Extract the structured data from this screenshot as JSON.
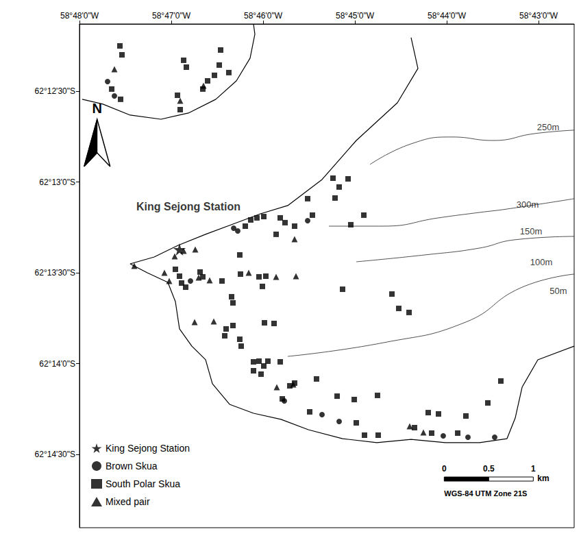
{
  "chart_data": {
    "type": "scatter",
    "grid": false,
    "xlim": [
      -58.8,
      -58.7102
    ],
    "ylim": [
      -62.24839,
      -62.20217
    ],
    "xticks": [
      {
        "value": -58.8,
        "label": "58°48'0\"W"
      },
      {
        "value": -58.783333,
        "label": "58°47'0\"W"
      },
      {
        "value": -58.766667,
        "label": "58°46'0\"W"
      },
      {
        "value": -58.75,
        "label": "58°45'0\"W"
      },
      {
        "value": -58.733333,
        "label": "58°44'0\"W"
      },
      {
        "value": -58.716667,
        "label": "58°43'0\"W"
      }
    ],
    "yticks": [
      {
        "value": -62.241667,
        "label": "62°14'30\"S"
      },
      {
        "value": -62.233333,
        "label": "62°14'0\"S"
      },
      {
        "value": -62.225,
        "label": "62°13'30\"S"
      },
      {
        "value": -62.216667,
        "label": "62°13'0\"S"
      },
      {
        "value": -62.208333,
        "label": "62°12'30\"S"
      }
    ],
    "legend": "bottom-left",
    "series": [
      {
        "name": "King Sejong Station",
        "color": "#000000",
        "marker": "star",
        "values": [
          [
            -58.78184,
            -62.22286
          ]
        ]
      },
      {
        "name": "Brown Skua",
        "color": "#000000",
        "marker": "circle",
        "values": [
          [
            -58.7949,
            -62.20745
          ],
          [
            -58.79366,
            -62.20877
          ],
          [
            -58.77201,
            -62.22091
          ],
          [
            -58.77127,
            -62.22116
          ],
          [
            -58.75858,
            -62.22022
          ],
          [
            -58.77985,
            -62.22575
          ],
          [
            -58.76281,
            -62.23676
          ],
          [
            -58.75597,
            -62.23801
          ],
          [
            -58.75286,
            -62.23864
          ],
          [
            -58.73396,
            -62.23996
          ],
          [
            -58.72948,
            -62.24009
          ],
          [
            -58.72463,
            -62.24009
          ]
        ]
      },
      {
        "name": "South Polar Skua",
        "color": "#000000",
        "marker": "square",
        "values": [
          [
            -58.79266,
            -62.20418
          ],
          [
            -58.79229,
            -62.205
          ],
          [
            -58.79415,
            -62.20814
          ],
          [
            -58.79254,
            -62.20908
          ],
          [
            -58.78109,
            -62.2055
          ],
          [
            -58.7806,
            -62.20613
          ],
          [
            -58.78221,
            -62.20871
          ],
          [
            -58.78172,
            -62.21003
          ],
          [
            -58.77761,
            -62.20814
          ],
          [
            -58.77674,
            -62.20739
          ],
          [
            -58.77438,
            -62.20456
          ],
          [
            -58.77463,
            -62.20594
          ],
          [
            -58.77289,
            -62.20663
          ],
          [
            -58.7755,
            -62.20688
          ],
          [
            -58.75398,
            -62.21632
          ],
          [
            -58.75124,
            -62.21638
          ],
          [
            -58.75361,
            -62.21814
          ],
          [
            -58.75286,
            -62.21713
          ],
          [
            -58.75858,
            -62.2182
          ],
          [
            -58.74838,
            -62.21971
          ],
          [
            -58.75075,
            -62.22059
          ],
          [
            -58.76356,
            -62.21996
          ],
          [
            -58.76269,
            -62.2204
          ],
          [
            -58.76654,
            -62.21984
          ],
          [
            -58.76779,
            -62.21996
          ],
          [
            -58.76891,
            -62.22015
          ],
          [
            -58.7699,
            -62.22072
          ],
          [
            -58.7643,
            -62.22147
          ],
          [
            -58.76095,
            -62.22072
          ],
          [
            -58.75771,
            -62.21971
          ],
          [
            -58.7709,
            -62.22336
          ],
          [
            -58.77239,
            -62.2272
          ],
          [
            -58.77214,
            -62.22776
          ],
          [
            -58.77338,
            -62.23015
          ],
          [
            -58.77363,
            -62.23078
          ],
          [
            -58.77214,
            -62.22984
          ],
          [
            -58.7709,
            -62.2311
          ],
          [
            -58.77065,
            -62.23173
          ],
          [
            -58.76642,
            -62.22959
          ],
          [
            -58.76468,
            -62.22965
          ],
          [
            -58.76741,
            -62.22537
          ],
          [
            -58.76679,
            -62.22625
          ],
          [
            -58.76617,
            -62.22531
          ],
          [
            -58.75224,
            -62.22651
          ],
          [
            -58.74328,
            -62.22695
          ],
          [
            -58.74204,
            -62.22827
          ],
          [
            -58.74017,
            -62.22864
          ],
          [
            -58.78259,
            -62.22468
          ],
          [
            -58.78184,
            -62.22531
          ],
          [
            -58.78147,
            -62.22594
          ],
          [
            -58.78072,
            -62.22632
          ],
          [
            -58.77811,
            -62.22493
          ],
          [
            -58.77761,
            -62.22537
          ],
          [
            -58.77413,
            -62.22575
          ],
          [
            -58.77077,
            -62.22512
          ],
          [
            -58.76841,
            -62.23317
          ],
          [
            -58.76741,
            -62.23311
          ],
          [
            -58.76654,
            -62.23355
          ],
          [
            -58.76841,
            -62.23399
          ],
          [
            -58.76704,
            -62.2343
          ],
          [
            -58.7658,
            -62.23311
          ],
          [
            -58.76356,
            -62.23317
          ],
          [
            -58.75697,
            -62.23474
          ],
          [
            -58.76095,
            -62.23512
          ],
          [
            -58.76318,
            -62.23657
          ],
          [
            -58.76182,
            -62.23537
          ],
          [
            -58.75323,
            -62.23632
          ],
          [
            -58.75012,
            -62.23663
          ],
          [
            -58.7459,
            -62.23625
          ],
          [
            -58.75821,
            -62.23776
          ],
          [
            -58.74975,
            -62.23877
          ],
          [
            -58.74826,
            -62.2399
          ],
          [
            -58.74577,
            -62.2399
          ],
          [
            -58.73918,
            -62.23921
          ],
          [
            -58.73669,
            -62.23783
          ],
          [
            -58.73483,
            -62.23795
          ],
          [
            -58.72985,
            -62.23814
          ],
          [
            -58.72587,
            -62.23694
          ],
          [
            -58.72351,
            -62.23493
          ],
          [
            -58.73607,
            -62.23971
          ],
          [
            -58.73134,
            -62.23971
          ]
        ]
      },
      {
        "name": "Mixed pair",
        "color": "#000000",
        "marker": "triangle",
        "values": [
          [
            -58.79366,
            -62.20632
          ],
          [
            -58.78172,
            -62.20921
          ],
          [
            -58.77749,
            -62.20783
          ],
          [
            -58.79005,
            -62.22437
          ],
          [
            -58.78458,
            -62.225
          ],
          [
            -58.78271,
            -62.22349
          ],
          [
            -58.78109,
            -62.22298
          ],
          [
            -58.77898,
            -62.22286
          ],
          [
            -58.78371,
            -62.22575
          ],
          [
            -58.77836,
            -62.22544
          ],
          [
            -58.77637,
            -62.22569
          ],
          [
            -58.7791,
            -62.22952
          ],
          [
            -58.77562,
            -62.22946
          ],
          [
            -58.76095,
            -62.22191
          ],
          [
            -58.76928,
            -62.225
          ],
          [
            -58.7643,
            -62.22537
          ],
          [
            -58.7607,
            -62.22531
          ],
          [
            -58.76418,
            -62.2355
          ],
          [
            -58.76119,
            -62.23525
          ],
          [
            -58.74005,
            -62.23908
          ],
          [
            -58.73756,
            -62.23965
          ]
        ]
      }
    ],
    "coastline": [
      [
        [
          -58.7398,
          -62.20342
        ],
        [
          -58.73856,
          -62.20625
        ],
        [
          -58.74229,
          -62.2094
        ],
        [
          -58.74975,
          -62.21286
        ],
        [
          -58.75597,
          -62.21644
        ],
        [
          -58.76219,
          -62.21883
        ],
        [
          -58.76716,
          -62.21959
        ],
        [
          -58.77214,
          -62.22053
        ],
        [
          -58.77711,
          -62.22147
        ],
        [
          -58.78209,
          -62.22248
        ],
        [
          -58.78644,
          -62.22355
        ],
        [
          -58.7908,
          -62.22418
        ],
        [
          -58.78769,
          -62.225
        ],
        [
          -58.78396,
          -62.22588
        ],
        [
          -58.78259,
          -62.22764
        ],
        [
          -58.78184,
          -62.23015
        ],
        [
          -58.7796,
          -62.23173
        ],
        [
          -58.77711,
          -62.23298
        ],
        [
          -58.77587,
          -62.23518
        ],
        [
          -58.77276,
          -62.23707
        ],
        [
          -58.76841,
          -62.23789
        ],
        [
          -58.76343,
          -62.23845
        ],
        [
          -58.75846,
          -62.2394
        ],
        [
          -58.75224,
          -62.24022
        ],
        [
          -58.74602,
          -62.24059
        ],
        [
          -58.7398,
          -62.24028
        ],
        [
          -58.73358,
          -62.24059
        ],
        [
          -58.72736,
          -62.24059
        ],
        [
          -58.72239,
          -62.24022
        ],
        [
          -58.7209,
          -62.23833
        ],
        [
          -58.71965,
          -62.2355
        ],
        [
          -58.71679,
          -62.23298
        ],
        [
          -58.7102,
          -62.23173
        ]
      ],
      [
        [
          -58.7995,
          -62.20908
        ],
        [
          -58.79577,
          -62.20952
        ],
        [
          -58.7908,
          -62.21053
        ],
        [
          -58.7852,
          -62.21091
        ],
        [
          -58.78022,
          -62.21034
        ],
        [
          -58.77525,
          -62.20908
        ],
        [
          -58.77152,
          -62.20739
        ],
        [
          -58.76903,
          -62.20531
        ],
        [
          -58.76816,
          -62.20311
        ],
        [
          -58.76841,
          -62.20217
        ]
      ]
    ],
    "contours": [
      [
        [
          -58.74726,
          -62.21506
        ],
        [
          -58.7398,
          -62.21317
        ],
        [
          -58.73234,
          -62.21254
        ],
        [
          -58.72488,
          -62.21286
        ],
        [
          -58.71741,
          -62.21223
        ],
        [
          -58.7102,
          -62.21191
        ]
      ],
      [
        [
          -58.75473,
          -62.22072
        ],
        [
          -58.74478,
          -62.22072
        ],
        [
          -58.73483,
          -62.21996
        ],
        [
          -58.72736,
          -62.21946
        ],
        [
          -58.72239,
          -62.21915
        ],
        [
          -58.7102,
          -62.2182
        ]
      ],
      [
        [
          -58.74975,
          -62.22399
        ],
        [
          -58.73731,
          -62.22336
        ],
        [
          -58.72736,
          -62.22273
        ],
        [
          -58.72114,
          -62.22198
        ],
        [
          -58.7102,
          -62.22166
        ]
      ],
      [
        [
          -58.76219,
          -62.23267
        ],
        [
          -58.74478,
          -62.23141
        ],
        [
          -58.72985,
          -62.22952
        ],
        [
          -58.7199,
          -62.22638
        ],
        [
          -58.7102,
          -62.22512
        ]
      ]
    ],
    "annotations": [
      {
        "text": "King Sejong Station",
        "position": [
          -58.78022,
          -62.21896
        ]
      },
      {
        "text": "250m",
        "position": [
          -58.71493,
          -62.21166
        ]
      },
      {
        "text": "300m",
        "position": [
          -58.71866,
          -62.21871
        ]
      },
      {
        "text": "150m",
        "position": [
          -58.71803,
          -62.22122
        ]
      },
      {
        "text": "100m",
        "position": [
          -58.71617,
          -62.22405
        ]
      },
      {
        "text": "50m",
        "position": [
          -58.71306,
          -62.22669
        ]
      }
    ],
    "north_label": "N",
    "scale_bar": {
      "ticks": [
        0,
        0.5,
        1
      ],
      "unit": "km",
      "caption": "WGS-84 UTM Zone 21S"
    }
  }
}
